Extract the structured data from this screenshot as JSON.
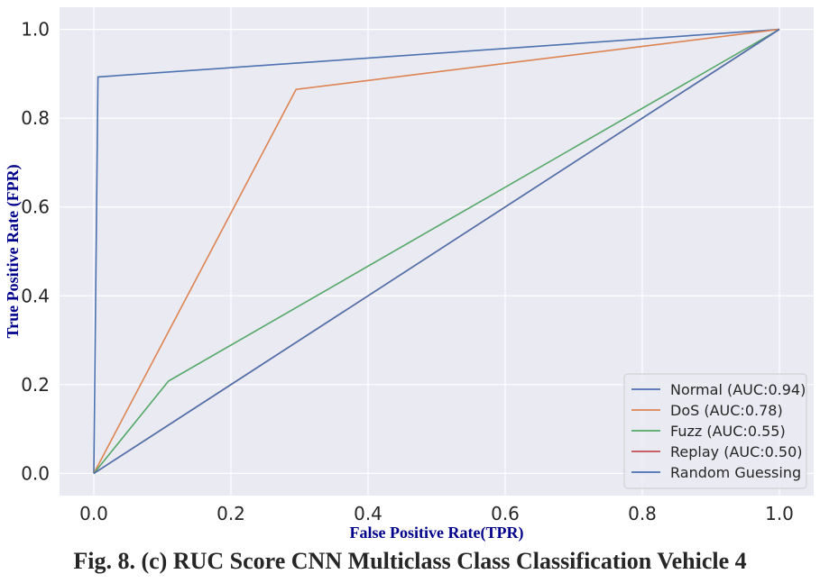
{
  "caption": "Fig. 8. (c) RUC Score CNN Multiclass Class Classification Vehicle 4",
  "chart_data": {
    "type": "line",
    "title": "",
    "xlabel": "False Positive Rate(TPR)",
    "ylabel": "True Positive Rate (FPR)",
    "xlim": [
      -0.05,
      1.05
    ],
    "ylim": [
      -0.05,
      1.05
    ],
    "xticks": [
      "0.0",
      "0.2",
      "0.4",
      "0.6",
      "0.8",
      "1.0"
    ],
    "yticks": [
      "0.0",
      "0.2",
      "0.4",
      "0.6",
      "0.8",
      "1.0"
    ],
    "grid": true,
    "legend_position": "lower-right",
    "series": [
      {
        "name": "Normal (AUC:0.94)",
        "color": "#4c72b0",
        "x": [
          0,
          0.006,
          1
        ],
        "y": [
          0,
          0.893,
          1
        ]
      },
      {
        "name": "DoS (AUC:0.78)",
        "color": "#dd8452",
        "x": [
          0,
          0.295,
          1
        ],
        "y": [
          0,
          0.865,
          1
        ]
      },
      {
        "name": "Fuzz (AUC:0.55)",
        "color": "#55a868",
        "x": [
          0,
          0.109,
          1
        ],
        "y": [
          0,
          0.208,
          1
        ]
      },
      {
        "name": "Replay (AUC:0.50)",
        "color": "#c44e52",
        "x": [
          0,
          1
        ],
        "y": [
          0,
          1
        ]
      },
      {
        "name": "Random Guessing",
        "color": "#4c72b0",
        "x": [
          0,
          1
        ],
        "y": [
          0,
          1
        ]
      }
    ]
  }
}
